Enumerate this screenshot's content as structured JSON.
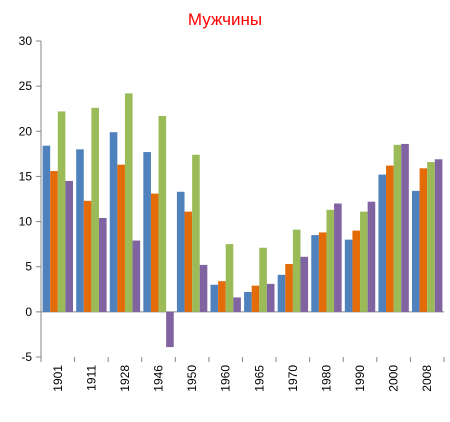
{
  "chart_data": {
    "type": "bar",
    "title": "Мужчины",
    "title_color": "#ff0000",
    "xlabel": "",
    "ylabel": "",
    "ylim": [
      -5,
      30
    ],
    "yticks": [
      -5,
      0,
      5,
      10,
      15,
      20,
      25,
      30
    ],
    "grid": false,
    "legend": "none",
    "categories": [
      "1901",
      "1911",
      "1928",
      "1946",
      "1950",
      "1960",
      "1965",
      "1970",
      "1980",
      "1990",
      "2000",
      "2008"
    ],
    "series": [
      {
        "color": "#4f81bd",
        "values": [
          18.4,
          18.0,
          19.9,
          17.7,
          13.3,
          3.0,
          2.2,
          4.1,
          8.5,
          8.0,
          15.2,
          13.4
        ]
      },
      {
        "color": "#e36c09",
        "values": [
          15.6,
          12.3,
          16.3,
          13.1,
          11.1,
          3.4,
          2.9,
          5.3,
          8.8,
          9.0,
          16.2,
          15.9
        ]
      },
      {
        "color": "#9bbb59",
        "values": [
          22.2,
          22.6,
          24.2,
          21.7,
          17.4,
          7.5,
          7.1,
          9.1,
          11.3,
          11.1,
          18.5,
          16.6
        ]
      },
      {
        "color": "#8064a2",
        "values": [
          14.5,
          10.4,
          7.9,
          -3.9,
          5.2,
          1.6,
          3.1,
          6.1,
          12.0,
          12.2,
          18.6,
          16.9
        ]
      }
    ]
  }
}
